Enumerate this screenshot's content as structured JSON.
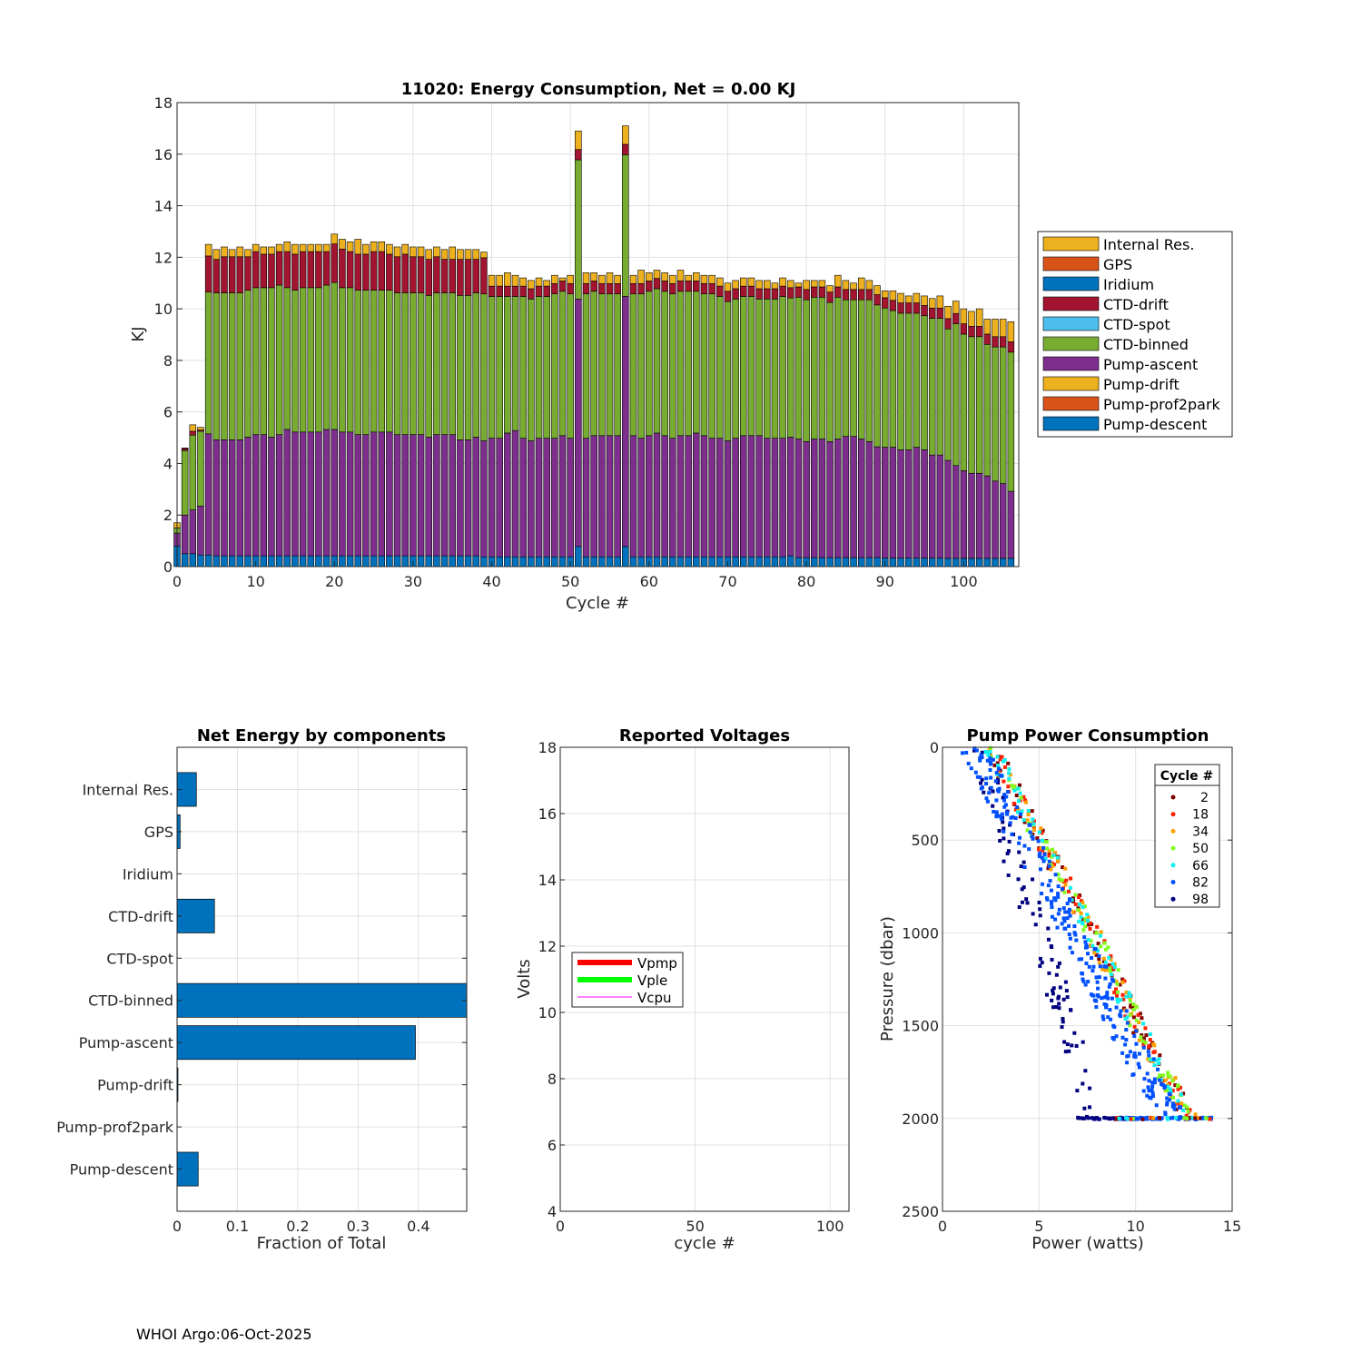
{
  "footer": "WHOI Argo:06-Oct-2025",
  "chart_data": [
    {
      "type": "bar",
      "stacked": true,
      "title": "11020: Energy Consumption,  Net =   0.00 KJ",
      "xlabel": "Cycle #",
      "ylabel": "KJ",
      "xlim": [
        0,
        107
      ],
      "ylim": [
        0,
        18
      ],
      "xticks": [
        0,
        10,
        20,
        30,
        40,
        50,
        60,
        70,
        80,
        90,
        100
      ],
      "yticks": [
        0,
        2,
        4,
        6,
        8,
        10,
        12,
        14,
        16,
        18
      ],
      "legend_position": "outside-right",
      "legend": [
        {
          "name": "Internal Res.",
          "color": "#EDB120"
        },
        {
          "name": "GPS",
          "color": "#D95319"
        },
        {
          "name": "Iridium",
          "color": "#0072BD"
        },
        {
          "name": "CTD-drift",
          "color": "#A2142F"
        },
        {
          "name": "CTD-spot",
          "color": "#4DBEEE"
        },
        {
          "name": "CTD-binned",
          "color": "#77AC30"
        },
        {
          "name": "Pump-ascent",
          "color": "#7E2F8E"
        },
        {
          "name": "Pump-drift",
          "color": "#EDB120"
        },
        {
          "name": "Pump-prof2park",
          "color": "#D95319"
        },
        {
          "name": "Pump-descent",
          "color": "#0072BD"
        }
      ],
      "stack_order": [
        "Pump-descent",
        "Pump-ascent",
        "CTD-binned",
        "CTD-drift",
        "Internal Res."
      ],
      "stack_colors": [
        "#0072BD",
        "#7E2F8E",
        "#77AC30",
        "#A2142F",
        "#EDB120"
      ],
      "cycles": [
        0,
        1,
        2,
        3,
        4,
        5,
        6,
        7,
        8,
        9,
        10,
        11,
        12,
        13,
        14,
        15,
        16,
        17,
        18,
        19,
        20,
        21,
        22,
        23,
        24,
        25,
        26,
        27,
        28,
        29,
        30,
        31,
        32,
        33,
        34,
        35,
        36,
        37,
        38,
        39,
        40,
        41,
        42,
        43,
        44,
        45,
        46,
        47,
        48,
        49,
        50,
        51,
        52,
        53,
        54,
        55,
        56,
        57,
        58,
        59,
        60,
        61,
        62,
        63,
        64,
        65,
        66,
        67,
        68,
        69,
        70,
        71,
        72,
        73,
        74,
        75,
        76,
        77,
        78,
        79,
        80,
        81,
        82,
        83,
        84,
        85,
        86,
        87,
        88,
        89,
        90,
        91,
        92,
        93,
        94,
        95,
        96,
        97,
        98,
        99,
        100,
        101,
        102,
        103,
        104,
        105,
        106
      ],
      "totals": [
        1.7,
        4.6,
        5.5,
        5.4,
        12.5,
        12.3,
        12.4,
        12.3,
        12.4,
        12.3,
        12.5,
        12.4,
        12.4,
        12.5,
        12.6,
        12.5,
        12.5,
        12.5,
        12.5,
        12.5,
        12.9,
        12.7,
        12.6,
        12.7,
        12.5,
        12.6,
        12.6,
        12.5,
        12.4,
        12.5,
        12.4,
        12.4,
        12.3,
        12.4,
        12.3,
        12.4,
        12.3,
        12.3,
        12.3,
        12.2,
        11.3,
        11.3,
        11.4,
        11.3,
        11.2,
        11.1,
        11.2,
        11.1,
        11.3,
        11.2,
        11.3,
        16.9,
        11.4,
        11.4,
        11.3,
        11.4,
        11.3,
        17.1,
        11.3,
        11.5,
        11.4,
        11.5,
        11.4,
        11.3,
        11.5,
        11.3,
        11.4,
        11.3,
        11.3,
        11.2,
        11.0,
        11.1,
        11.2,
        11.2,
        11.1,
        11.1,
        11.0,
        11.2,
        11.1,
        11.0,
        11.1,
        11.1,
        11.1,
        10.9,
        11.3,
        11.1,
        11.0,
        11.2,
        11.1,
        10.9,
        10.7,
        10.7,
        10.6,
        10.5,
        10.6,
        10.5,
        10.4,
        10.5,
        10.1,
        10.3,
        10.0,
        9.9,
        10.0,
        9.6,
        9.6,
        9.6,
        9.5
      ],
      "pump_descent": [
        0.8,
        0.5,
        0.5,
        0.45,
        0.45,
        0.42,
        0.42,
        0.42,
        0.42,
        0.42,
        0.42,
        0.42,
        0.42,
        0.42,
        0.42,
        0.42,
        0.42,
        0.42,
        0.42,
        0.42,
        0.42,
        0.42,
        0.42,
        0.42,
        0.42,
        0.42,
        0.42,
        0.42,
        0.42,
        0.42,
        0.42,
        0.42,
        0.42,
        0.42,
        0.42,
        0.42,
        0.42,
        0.42,
        0.42,
        0.38,
        0.38,
        0.38,
        0.38,
        0.38,
        0.38,
        0.38,
        0.38,
        0.38,
        0.38,
        0.38,
        0.38,
        0.78,
        0.38,
        0.38,
        0.38,
        0.38,
        0.38,
        0.78,
        0.38,
        0.38,
        0.38,
        0.38,
        0.38,
        0.38,
        0.38,
        0.38,
        0.38,
        0.38,
        0.38,
        0.38,
        0.38,
        0.38,
        0.38,
        0.38,
        0.38,
        0.38,
        0.38,
        0.38,
        0.42,
        0.35,
        0.35,
        0.35,
        0.35,
        0.35,
        0.35,
        0.35,
        0.35,
        0.35,
        0.35,
        0.35,
        0.33,
        0.33,
        0.33,
        0.33,
        0.33,
        0.33,
        0.33,
        0.33,
        0.32,
        0.32,
        0.32,
        0.32,
        0.32,
        0.32,
        0.32,
        0.32,
        0.32
      ],
      "pump_ascent": [
        0.5,
        1.5,
        1.7,
        1.9,
        4.7,
        4.5,
        4.5,
        4.5,
        4.5,
        4.6,
        4.7,
        4.7,
        4.6,
        4.7,
        4.9,
        4.8,
        4.8,
        4.8,
        4.8,
        4.9,
        4.9,
        4.8,
        4.8,
        4.7,
        4.7,
        4.8,
        4.8,
        4.8,
        4.7,
        4.7,
        4.7,
        4.7,
        4.6,
        4.7,
        4.7,
        4.7,
        4.5,
        4.5,
        4.6,
        4.5,
        4.6,
        4.6,
        4.8,
        4.9,
        4.6,
        4.5,
        4.6,
        4.6,
        4.6,
        4.7,
        4.6,
        9.6,
        4.6,
        4.7,
        4.7,
        4.7,
        4.7,
        9.7,
        4.7,
        4.6,
        4.7,
        4.8,
        4.7,
        4.6,
        4.7,
        4.7,
        4.8,
        4.7,
        4.6,
        4.6,
        4.5,
        4.6,
        4.7,
        4.7,
        4.7,
        4.6,
        4.6,
        4.6,
        4.6,
        4.6,
        4.5,
        4.6,
        4.6,
        4.5,
        4.6,
        4.7,
        4.7,
        4.6,
        4.5,
        4.3,
        4.3,
        4.3,
        4.2,
        4.2,
        4.3,
        4.2,
        4.0,
        4.0,
        3.8,
        3.6,
        3.4,
        3.3,
        3.3,
        3.2,
        3.0,
        2.9,
        2.6
      ],
      "ctd_binned": [
        0.2,
        2.5,
        2.9,
        2.9,
        5.5,
        5.7,
        5.7,
        5.7,
        5.7,
        5.7,
        5.7,
        5.7,
        5.8,
        5.8,
        5.5,
        5.5,
        5.6,
        5.6,
        5.6,
        5.6,
        5.7,
        5.6,
        5.6,
        5.6,
        5.6,
        5.5,
        5.5,
        5.5,
        5.5,
        5.5,
        5.5,
        5.5,
        5.5,
        5.5,
        5.5,
        5.5,
        5.6,
        5.6,
        5.6,
        5.7,
        5.5,
        5.5,
        5.3,
        5.2,
        5.5,
        5.5,
        5.5,
        5.5,
        5.6,
        5.6,
        5.6,
        5.4,
        5.6,
        5.6,
        5.5,
        5.5,
        5.5,
        5.5,
        5.5,
        5.6,
        5.6,
        5.6,
        5.6,
        5.6,
        5.6,
        5.6,
        5.5,
        5.5,
        5.6,
        5.5,
        5.4,
        5.4,
        5.4,
        5.4,
        5.3,
        5.4,
        5.4,
        5.5,
        5.4,
        5.5,
        5.5,
        5.5,
        5.5,
        5.4,
        5.5,
        5.3,
        5.3,
        5.4,
        5.5,
        5.5,
        5.4,
        5.3,
        5.3,
        5.3,
        5.2,
        5.2,
        5.3,
        5.3,
        5.1,
        5.5,
        5.3,
        5.3,
        5.3,
        5.1,
        5.2,
        5.3,
        5.4
      ],
      "ctd_drift": [
        0.0,
        0.08,
        0.15,
        0.05,
        1.4,
        1.3,
        1.4,
        1.4,
        1.4,
        1.3,
        1.4,
        1.3,
        1.3,
        1.3,
        1.4,
        1.4,
        1.4,
        1.4,
        1.4,
        1.3,
        1.5,
        1.5,
        1.4,
        1.4,
        1.4,
        1.5,
        1.5,
        1.4,
        1.4,
        1.5,
        1.4,
        1.4,
        1.4,
        1.4,
        1.3,
        1.3,
        1.4,
        1.4,
        1.3,
        1.4,
        0.4,
        0.4,
        0.4,
        0.4,
        0.4,
        0.4,
        0.4,
        0.4,
        0.4,
        0.4,
        0.4,
        0.4,
        0.4,
        0.4,
        0.4,
        0.4,
        0.4,
        0.4,
        0.4,
        0.4,
        0.4,
        0.4,
        0.4,
        0.4,
        0.4,
        0.4,
        0.4,
        0.4,
        0.4,
        0.4,
        0.4,
        0.4,
        0.4,
        0.4,
        0.4,
        0.4,
        0.4,
        0.4,
        0.4,
        0.4,
        0.4,
        0.4,
        0.4,
        0.4,
        0.4,
        0.4,
        0.4,
        0.4,
        0.4,
        0.4,
        0.4,
        0.4,
        0.4,
        0.4,
        0.4,
        0.4,
        0.4,
        0.4,
        0.4,
        0.4,
        0.4,
        0.4,
        0.4,
        0.4,
        0.4,
        0.4,
        0.4
      ]
    },
    {
      "type": "bar",
      "orientation": "horizontal",
      "title": "Net Energy by components",
      "xlabel": "Fraction of Total",
      "xlim": [
        0,
        0.48
      ],
      "xticks": [
        0,
        0.1,
        0.2,
        0.3,
        0.4
      ],
      "xtick_labels": [
        "0",
        "0.1",
        "0.2",
        "0.3",
        "0.4"
      ],
      "categories": [
        "Internal Res.",
        "GPS",
        "Iridium",
        "CTD-drift",
        "CTD-spot",
        "CTD-binned",
        "Pump-ascent",
        "Pump-drift",
        "Pump-prof2park",
        "Pump-descent"
      ],
      "values": [
        0.032,
        0.005,
        0.0,
        0.062,
        0.0,
        0.48,
        0.395,
        0.001,
        0.0,
        0.035
      ],
      "color": "#0072BD"
    },
    {
      "type": "line",
      "title": "Reported Voltages",
      "xlabel": "cycle #",
      "ylabel": "Volts",
      "xlim": [
        0,
        107
      ],
      "ylim": [
        4,
        18
      ],
      "xticks": [
        0,
        50,
        100
      ],
      "yticks": [
        4,
        6,
        8,
        10,
        12,
        14,
        16,
        18
      ],
      "legend_position": "middle-left",
      "series": [
        {
          "name": "Vpmp",
          "color": "#FF0000",
          "values": []
        },
        {
          "name": "Vple",
          "color": "#00FF00",
          "values": []
        },
        {
          "name": "Vcpu",
          "color": "#FF00FF",
          "values": []
        }
      ]
    },
    {
      "type": "scatter",
      "title": "Pump Power Consumption",
      "xlabel": "Power (watts)",
      "ylabel": "Pressure (dbar)",
      "xlim": [
        0,
        15
      ],
      "ylim": [
        0,
        2500
      ],
      "y_reversed": true,
      "xticks": [
        0,
        5,
        10,
        15
      ],
      "yticks": [
        0,
        500,
        1000,
        1500,
        2000,
        2500
      ],
      "legend_title": "Cycle #",
      "legend_position": "top-right",
      "series": [
        {
          "name": "2",
          "color": "#800000"
        },
        {
          "name": "18",
          "color": "#FF2000"
        },
        {
          "name": "34",
          "color": "#FFA000"
        },
        {
          "name": "50",
          "color": "#80FF20"
        },
        {
          "name": "66",
          "color": "#10F0F0"
        },
        {
          "name": "82",
          "color": "#0050FF"
        },
        {
          "name": "98",
          "color": "#000080"
        }
      ],
      "trend": {
        "pressure": [
          0,
          500,
          1000,
          1500,
          2000
        ],
        "power_main": [
          2.2,
          4.8,
          7.5,
          9.8,
          12.5
        ],
        "power_low": [
          1.8,
          3.4,
          5.0,
          6.5,
          7.5
        ]
      }
    }
  ]
}
